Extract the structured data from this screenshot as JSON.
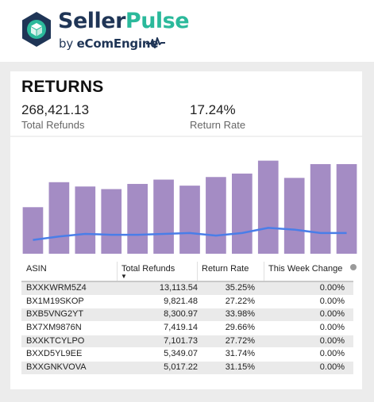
{
  "brand": {
    "name_part1": "Seller",
    "name_part2": "Pulse",
    "tagline_by": "by ",
    "tagline_company": "eComEngine",
    "logo_icon": "cube-gear-logo-icon",
    "pulse_icon": "heartbeat-pulse-icon",
    "colors": {
      "navy": "#1f3556",
      "teal": "#2bb99b"
    }
  },
  "widget": {
    "title": "RETURNS",
    "kpis": [
      {
        "value": "268,421.13",
        "label": "Total Refunds"
      },
      {
        "value": "17.24%",
        "label": "Return Rate"
      }
    ]
  },
  "chart_data": {
    "type": "bar",
    "categories": [
      "",
      "",
      "",
      "",
      "",
      "",
      "",
      "",
      "",
      "",
      "",
      "",
      ""
    ],
    "series": [
      {
        "type": "bar",
        "color": "#a48cc4",
        "values": [
          54,
          83,
          78,
          75,
          81,
          86,
          79,
          89,
          93,
          108,
          88,
          104,
          104
        ]
      },
      {
        "type": "line",
        "color": "#4a7ee8",
        "values": [
          16,
          20,
          23,
          22,
          22,
          23,
          24,
          21,
          24,
          30,
          28,
          24,
          24
        ]
      }
    ],
    "ylim": [
      0,
      115
    ],
    "grid": false,
    "legend": "none"
  },
  "table": {
    "columns": [
      "ASIN",
      "Total Refunds",
      "Return Rate",
      "This Week Change"
    ],
    "sorted_column": "Total Refunds",
    "sort_direction": "descending",
    "rows": [
      [
        "BXXKWRM5Z4",
        "13,113.54",
        "35.25%",
        "0.00%"
      ],
      [
        "BX1M19SKOP",
        "9,821.48",
        "27.22%",
        "0.00%"
      ],
      [
        "BXB5VNG2YT",
        "8,300.97",
        "33.98%",
        "0.00%"
      ],
      [
        "BX7XM9876N",
        "7,419.14",
        "29.66%",
        "0.00%"
      ],
      [
        "BXXKTCYLPO",
        "7,101.73",
        "27.72%",
        "0.00%"
      ],
      [
        "BXXD5YL9EE",
        "5,349.07",
        "31.74%",
        "0.00%"
      ],
      [
        "BXXGNKVOVA",
        "5,017.22",
        "31.15%",
        "0.00%"
      ]
    ]
  }
}
